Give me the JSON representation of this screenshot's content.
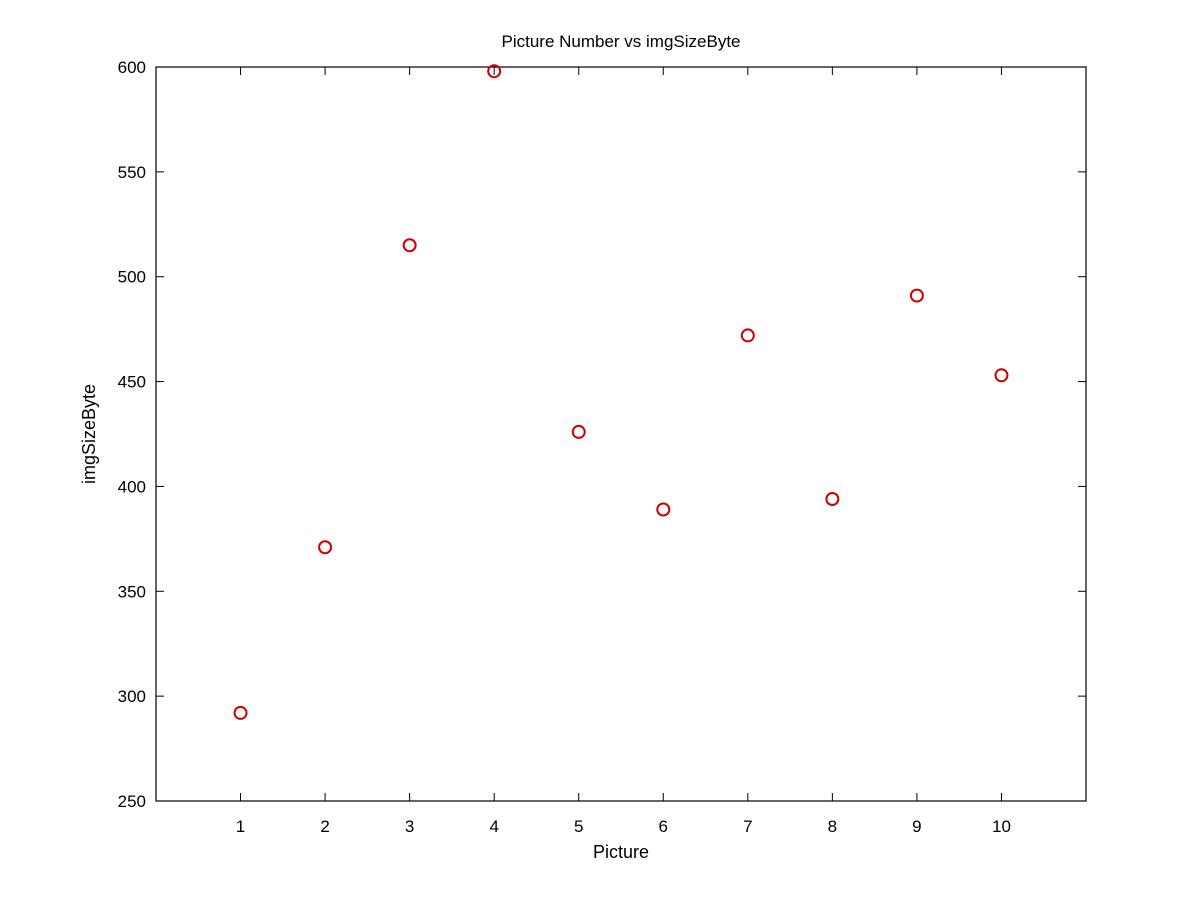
{
  "chart_data": {
    "type": "scatter",
    "title": "Picture Number vs imgSizeByte",
    "xlabel": "Picture",
    "ylabel": "imgSizeByte",
    "xlim": [
      0,
      11
    ],
    "ylim": [
      250,
      600
    ],
    "xticks": [
      1,
      2,
      3,
      4,
      5,
      6,
      7,
      8,
      9,
      10
    ],
    "yticks": [
      250,
      300,
      350,
      400,
      450,
      500,
      550,
      600
    ],
    "grid": false,
    "marker": "circle",
    "marker_color": "#cc0000",
    "series": [
      {
        "x": [
          1,
          2,
          3,
          4,
          5,
          6,
          7,
          8,
          9,
          10
        ],
        "y": [
          292,
          371,
          515,
          598,
          426,
          389,
          472,
          394,
          491,
          453
        ]
      }
    ]
  }
}
